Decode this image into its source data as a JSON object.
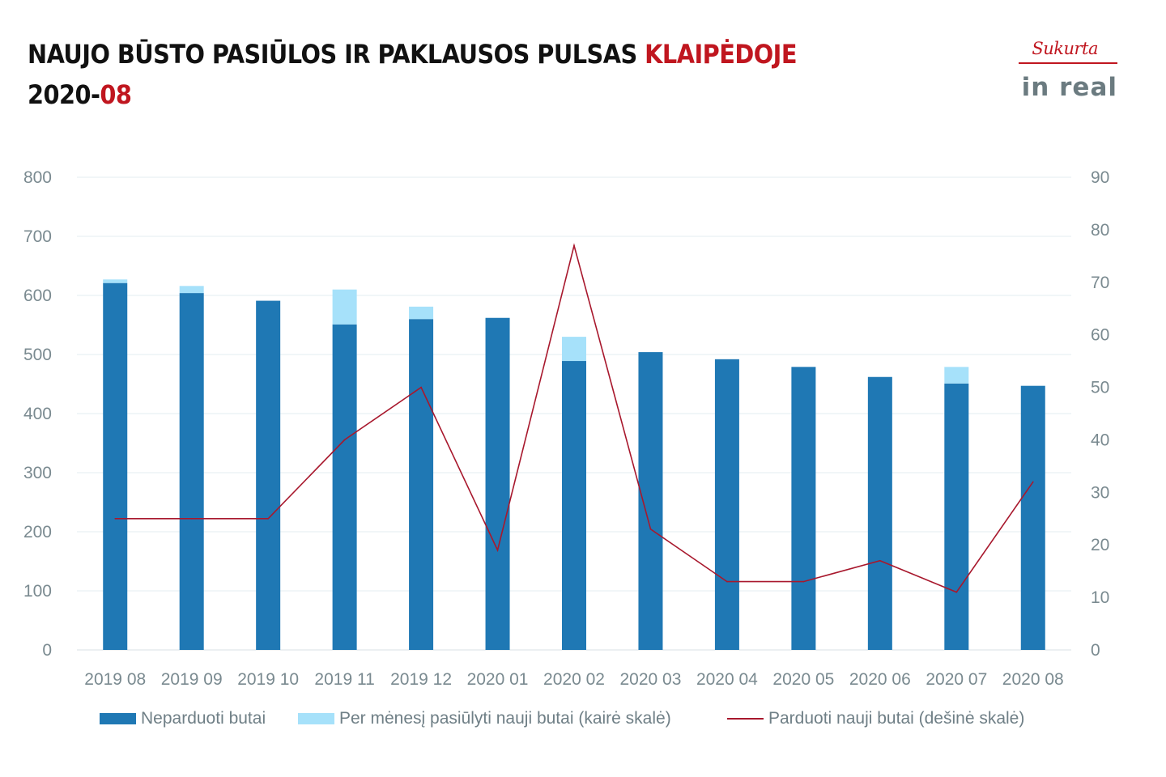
{
  "header": {
    "title_main": "NAUJO BŪSTO PASIŪLOS IR PAKLAUSOS PULSAS ",
    "title_city": "KLAIPĖDOJE",
    "period_year": "2020-",
    "period_month": "08"
  },
  "logo": {
    "credit": "Sukurta",
    "brand": "in real"
  },
  "colors": {
    "unsold": "#1f78b4",
    "offered": "#a6e1fa",
    "sold_line": "#a8182d",
    "accent": "#c0161f",
    "grid": "#e3eef2"
  },
  "chart_data": {
    "type": "bar",
    "title": "NAUJO BŪSTO PASIŪLOS IR PAKLAUSOS PULSAS KLAIPĖDOJE 2020-08",
    "categories": [
      "2019 08",
      "2019 09",
      "2019 10",
      "2019 11",
      "2019 12",
      "2020 01",
      "2020 02",
      "2020 03",
      "2020 04",
      "2020 05",
      "2020 06",
      "2020 07",
      "2020 08"
    ],
    "left_axis": {
      "min": 0,
      "max": 800,
      "step": 100,
      "ticks": [
        "0",
        "100",
        "200",
        "300",
        "400",
        "500",
        "600",
        "700",
        "800"
      ]
    },
    "right_axis": {
      "min": 0,
      "max": 90,
      "step": 10,
      "ticks": [
        "0",
        "10",
        "20",
        "30",
        "40",
        "50",
        "60",
        "70",
        "80",
        "90"
      ]
    },
    "grid": true,
    "legend_position": "bottom",
    "series": [
      {
        "name": "Neparduoti butai",
        "type": "bar",
        "stack": "left",
        "axis": "left",
        "values": [
          621,
          604,
          591,
          551,
          560,
          562,
          489,
          504,
          492,
          479,
          462,
          451,
          447
        ]
      },
      {
        "name": "Per mėnesį pasiūlyti nauji butai (kairė skalė)",
        "type": "bar",
        "stack": "left",
        "axis": "left",
        "values": [
          6,
          12,
          0,
          59,
          21,
          0,
          41,
          0,
          0,
          0,
          0,
          28,
          0
        ]
      },
      {
        "name": "Parduoti nauji butai (dešinė skalė)",
        "type": "line",
        "axis": "right",
        "values": [
          25,
          25,
          25,
          40,
          50,
          19,
          77,
          23,
          13,
          13,
          17,
          11,
          32
        ]
      }
    ]
  }
}
